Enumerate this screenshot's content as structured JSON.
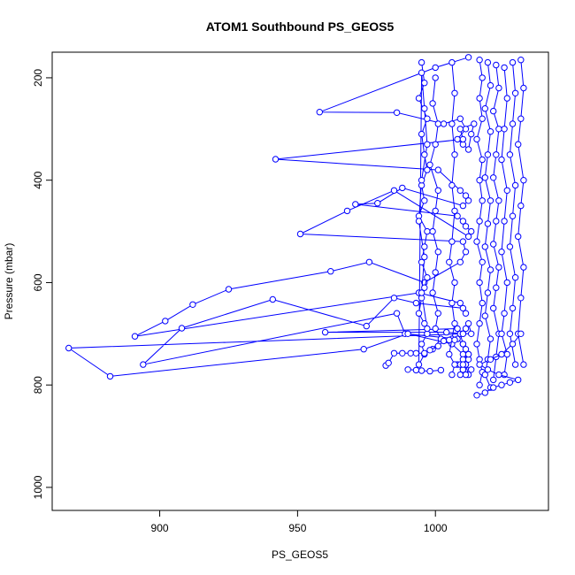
{
  "chart_data": {
    "type": "line",
    "title": "ATOM1 Southbound PS_GEOS5",
    "xlabel": "PS_GEOS5",
    "ylabel": "Pressure (mbar)",
    "xlim": [
      861,
      1041
    ],
    "ylim": [
      1045,
      150
    ],
    "y_reversed": true,
    "xticks": [
      900,
      950,
      1000
    ],
    "yticks": [
      200,
      400,
      600,
      800,
      1000
    ],
    "grid": false,
    "marker": "open-circle",
    "series_color": "#0000ff",
    "series": [
      {
        "x": [
          1012,
          1000,
          958,
          986,
          1003,
          1009,
          1011,
          1008,
          1010,
          1012,
          1013,
          1014,
          1009,
          1010,
          942,
          1001,
          1009,
          1011,
          1012,
          1010,
          988,
          979,
          971,
          1008,
          1010,
          1011,
          1013,
          1012,
          985,
          968,
          951,
          1010,
          1011,
          1009,
          996,
          976,
          962,
          925,
          912,
          902,
          891,
          994,
          1009,
          1011,
          1010,
          993,
          985,
          975,
          941,
          908,
          894,
          986,
          989,
          1008,
          1010,
          1011,
          1012,
          1010,
          1009,
          1008,
          960,
          1004,
          1010,
          1011,
          1012,
          1013,
          1010,
          867,
          882,
          974,
          990,
          1006,
          1010,
          1011,
          1012,
          1013,
          1010,
          1012,
          1008,
          1010,
          1011,
          1009,
          1010,
          1012,
          1011,
          1010,
          1009,
          1010
        ],
        "y": [
          160,
          180,
          267,
          268,
          290,
          280,
          300,
          320,
          330,
          340,
          310,
          290,
          300,
          320,
          359,
          380,
          420,
          430,
          440,
          450,
          415,
          445,
          447,
          470,
          480,
          490,
          500,
          510,
          420,
          460,
          505,
          520,
          540,
          560,
          600,
          560,
          578,
          613,
          643,
          675,
          705,
          620,
          640,
          660,
          650,
          640,
          630,
          685,
          633,
          689,
          760,
          660,
          700,
          710,
          720,
          730,
          740,
          720,
          700,
          690,
          697,
          697,
          700,
          690,
          680,
          700,
          700,
          728,
          783,
          730,
          700,
          720,
          740,
          760,
          780,
          770,
          760,
          750,
          760,
          770,
          780,
          760,
          750,
          740,
          760,
          770,
          780,
          760
        ]
      },
      {
        "x": [
          995,
          996,
          994,
          997,
          995,
          996,
          997,
          995,
          996,
          994,
          997,
          996,
          995,
          997,
          996,
          995,
          994,
          996,
          997,
          995,
          996,
          994,
          995,
          996,
          997,
          995,
          994,
          996,
          995,
          997
        ],
        "y": [
          170,
          210,
          240,
          280,
          310,
          350,
          380,
          410,
          440,
          470,
          500,
          530,
          560,
          590,
          610,
          630,
          660,
          680,
          700,
          720,
          740,
          760,
          190,
          260,
          330,
          400,
          480,
          550,
          620,
          690
        ]
      },
      {
        "x": [
          1000,
          999,
          1001,
          1000,
          998,
          1001,
          1000,
          999,
          1001,
          1000,
          999,
          1001,
          1000,
          1002,
          999
        ],
        "y": [
          200,
          250,
          290,
          330,
          370,
          420,
          460,
          500,
          540,
          580,
          620,
          660,
          690,
          710,
          730
        ]
      },
      {
        "x": [
          1006,
          1007,
          1006,
          1007,
          1006,
          1007,
          1006,
          1005,
          1007,
          1006,
          1007,
          1006,
          1005,
          1007,
          1006
        ],
        "y": [
          170,
          230,
          290,
          350,
          410,
          460,
          520,
          560,
          600,
          640,
          680,
          710,
          740,
          760,
          780
        ]
      },
      {
        "x": [
          1016,
          1017,
          1016,
          1017,
          1015,
          1017,
          1016,
          1017,
          1016,
          1015,
          1017,
          1016,
          1017,
          1016,
          1015,
          1016,
          1017,
          1016
        ],
        "y": [
          165,
          200,
          240,
          280,
          320,
          360,
          400,
          440,
          480,
          520,
          560,
          600,
          640,
          680,
          720,
          750,
          775,
          800
        ]
      },
      {
        "x": [
          1019,
          1020,
          1018,
          1020,
          1019,
          1018,
          1020,
          1019,
          1018,
          1020,
          1019,
          1018,
          1020,
          1019,
          1018,
          1020
        ],
        "y": [
          170,
          215,
          260,
          305,
          350,
          395,
          440,
          485,
          530,
          575,
          620,
          665,
          710,
          750,
          780,
          805
        ]
      },
      {
        "x": [
          1022,
          1023,
          1021,
          1023,
          1022,
          1021,
          1023,
          1022,
          1021,
          1023,
          1022,
          1021,
          1023,
          1022,
          1021
        ],
        "y": [
          175,
          220,
          265,
          300,
          350,
          395,
          440,
          480,
          525,
          570,
          610,
          650,
          700,
          745,
          790
        ]
      },
      {
        "x": [
          1025,
          1026,
          1025,
          1024,
          1026,
          1025,
          1024,
          1026,
          1025,
          1024,
          1026,
          1025
        ],
        "y": [
          180,
          240,
          300,
          360,
          420,
          480,
          540,
          600,
          660,
          700,
          740,
          780
        ]
      },
      {
        "x": [
          1028,
          1029,
          1028,
          1027,
          1029,
          1028,
          1027,
          1029,
          1028,
          1027,
          1029
        ],
        "y": [
          170,
          230,
          290,
          350,
          410,
          470,
          530,
          590,
          650,
          700,
          760
        ]
      },
      {
        "x": [
          1031,
          1032,
          1031,
          1030,
          1032,
          1031,
          1030,
          1032,
          1031,
          1030,
          1032
        ],
        "y": [
          165,
          220,
          280,
          330,
          400,
          450,
          510,
          570,
          630,
          700,
          760
        ]
      },
      {
        "x": [
          1015,
          1018,
          1021,
          1024,
          1027,
          1030,
          1023,
          1019,
          1016,
          1020,
          1024,
          1028,
          1031
        ],
        "y": [
          820,
          815,
          805,
          800,
          795,
          790,
          780,
          770,
          760,
          750,
          740,
          720,
          700
        ]
      },
      {
        "x": [
          982,
          983,
          985,
          988,
          991,
          993,
          996,
          998,
          1001,
          1003,
          1005,
          1007
        ],
        "y": [
          762,
          757,
          738,
          738,
          738,
          738,
          738,
          732,
          724,
          714,
          712,
          712
        ]
      },
      {
        "x": [
          990,
          993,
          995,
          998,
          1002
        ],
        "y": [
          770,
          771,
          772,
          773,
          771
        ]
      }
    ]
  }
}
